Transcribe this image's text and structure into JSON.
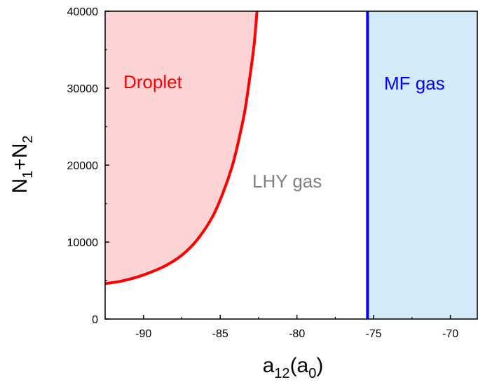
{
  "chart_data": {
    "type": "area",
    "xlabel": {
      "base": "a",
      "sub1": "12",
      "open": "(a",
      "sub2": "0",
      "close": ")"
    },
    "ylabel": {
      "n1": "N",
      "sub1": "1",
      "plus": "+N",
      "sub2": "2"
    },
    "xlim": [
      -92.5,
      -68.2
    ],
    "ylim": [
      0,
      40000
    ],
    "x_ticks": [
      -90,
      -85,
      -80,
      -75,
      -70
    ],
    "x_tick_labels": [
      "-90",
      "-85",
      "-80",
      "-75",
      "-70"
    ],
    "y_ticks": [
      0,
      10000,
      20000,
      30000,
      40000
    ],
    "y_tick_labels": [
      "0",
      "10000",
      "20000",
      "30000",
      "40000"
    ],
    "droplet_boundary": {
      "x": [
        -92.5,
        -91.5,
        -90.5,
        -89.5,
        -88.5,
        -87.5,
        -86.5,
        -85.5,
        -84.8,
        -84.2,
        -83.8,
        -83.4,
        -83.1,
        -82.8,
        -82.6
      ],
      "y": [
        4600,
        4900,
        5400,
        6100,
        7000,
        8300,
        10300,
        13300,
        16500,
        20000,
        23200,
        27000,
        31000,
        35500,
        40000
      ]
    },
    "mf_boundary_x": -75.4,
    "regions": [
      {
        "label": "Droplet",
        "color": "#ff0000",
        "fill": "#fcd4d6"
      },
      {
        "label": "LHY gas",
        "color": "#808080"
      },
      {
        "label": "MF gas",
        "color": "#0000ff",
        "fill": "#d3eaf9"
      }
    ],
    "boundary_colors": {
      "droplet": "#ff0000",
      "mf": "#0000ff"
    }
  }
}
